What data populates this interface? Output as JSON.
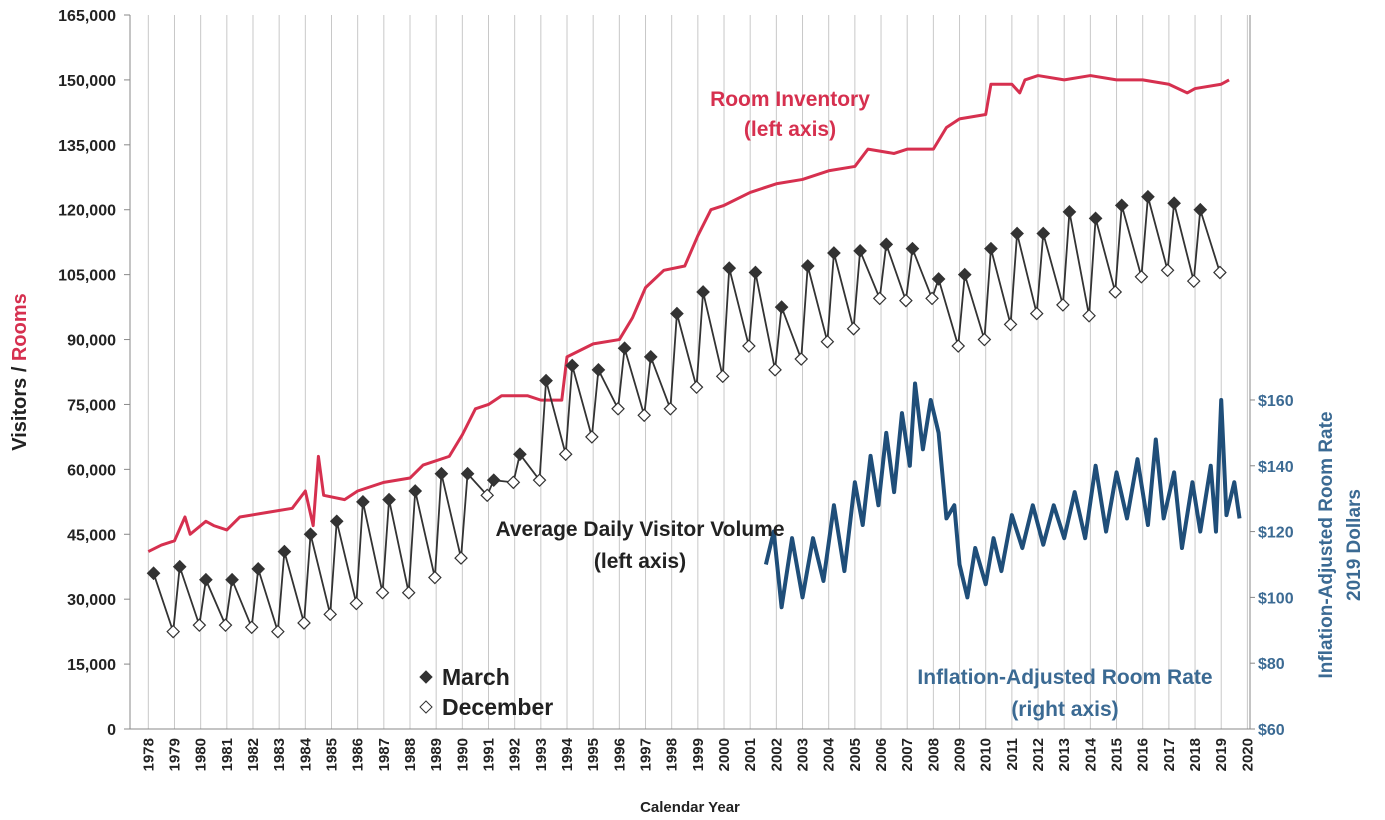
{
  "chart_data": {
    "type": "line",
    "ylabel": {
      "part1": "Visitors /",
      "part2": "Rooms"
    },
    "y2label": {
      "line1": "Inflation-Adjusted Room Rate",
      "line2": "2019 Dollars"
    },
    "xlabel": "Calendar Year",
    "xlim": [
      1977.3,
      2020.1
    ],
    "xticks": [
      1978,
      1979,
      1980,
      1981,
      1982,
      1983,
      1984,
      1985,
      1986,
      1987,
      1988,
      1989,
      1990,
      1991,
      1992,
      1993,
      1994,
      1995,
      1996,
      1997,
      1998,
      1999,
      2000,
      2001,
      2002,
      2003,
      2004,
      2005,
      2006,
      2007,
      2008,
      2009,
      2010,
      2011,
      2012,
      2013,
      2014,
      2015,
      2016,
      2017,
      2018,
      2019,
      2020
    ],
    "ylim": [
      0,
      165000
    ],
    "yticks": [
      0,
      {
        "value": 15000,
        "label": "15,000"
      },
      {
        "value": 30000,
        "label": "30,000"
      },
      {
        "value": 45000,
        "label": "45,000"
      },
      {
        "value": 60000,
        "label": "60,000"
      },
      {
        "value": 75000,
        "label": "75,000"
      },
      {
        "value": 90000,
        "label": "90,000"
      },
      {
        "value": 105000,
        "label": "105,000"
      },
      {
        "value": 120000,
        "label": "120,000"
      },
      {
        "value": 135000,
        "label": "135,000"
      },
      {
        "value": 150000,
        "label": "150,000"
      },
      {
        "value": 165000,
        "label": "165,000"
      }
    ],
    "y2lim": [
      60,
      277
    ],
    "y2ticks": [
      {
        "value": 60,
        "label": "$60"
      },
      {
        "value": 80,
        "label": "$80"
      },
      {
        "value": 100,
        "label": "$100"
      },
      {
        "value": 120,
        "label": "$120"
      },
      {
        "value": 140,
        "label": "$140"
      },
      {
        "value": 160,
        "label": "$160"
      }
    ],
    "grid": "x",
    "annotations": [
      {
        "text": "Room Inventory",
        "color": "#d6304f"
      },
      {
        "text": "(left axis)",
        "color": "#d6304f"
      },
      {
        "text": "Average Daily Visitor Volume",
        "color": "#222222"
      },
      {
        "text": "(left axis)",
        "color": "#222222"
      },
      {
        "text": "Inflation-Adjusted Room Rate",
        "color": "#3b6a93"
      },
      {
        "text": "(right axis)",
        "color": "#3b6a93"
      }
    ],
    "rooms": {
      "color": "#d6304f",
      "x": [
        1978,
        1978.5,
        1979,
        1979.4,
        1979.6,
        1980.2,
        1980.5,
        1981,
        1981.5,
        1982.5,
        1983.5,
        1984,
        1984.3,
        1984.5,
        1984.7,
        1985.5,
        1986,
        1987,
        1988,
        1988.5,
        1989.5,
        1990,
        1990.5,
        1991,
        1991.5,
        1992.5,
        1993,
        1993.8,
        1994,
        1995,
        1996,
        1996.5,
        1997,
        1997.7,
        1998.5,
        1999,
        1999.5,
        2000,
        2001,
        2002,
        2003,
        2004,
        2005,
        2005.5,
        2006.5,
        2007,
        2008,
        2008.5,
        2009,
        2010,
        2010.2,
        2011,
        2011.3,
        2011.5,
        2012,
        2013,
        2014,
        2015,
        2016,
        2017,
        2017.7,
        2018,
        2019,
        2019.3
      ],
      "values": [
        41000,
        42500,
        43500,
        49000,
        45000,
        48000,
        47000,
        46000,
        49000,
        50000,
        51000,
        55000,
        47000,
        63000,
        54000,
        53000,
        55000,
        57000,
        58000,
        61000,
        63000,
        68000,
        74000,
        75000,
        77000,
        77000,
        76000,
        76000,
        86000,
        89000,
        90000,
        95000,
        102000,
        106000,
        107000,
        114000,
        120000,
        121000,
        124000,
        126000,
        127000,
        129000,
        130000,
        134000,
        133000,
        134000,
        134000,
        139000,
        141000,
        142000,
        149000,
        149000,
        147000,
        150000,
        151000,
        150000,
        151000,
        150000,
        150000,
        149000,
        147000,
        148000,
        149000,
        150000
      ]
    },
    "series": [
      {
        "name": "March",
        "color": "#333333",
        "x": [
          1978.2,
          1979.2,
          1980.2,
          1981.2,
          1982.2,
          1983.2,
          1984.2,
          1985.2,
          1986.2,
          1987.2,
          1988.2,
          1989.2,
          1990.2,
          1991.2,
          1992.2,
          1993.2,
          1994.2,
          1995.2,
          1996.2,
          1997.2,
          1998.2,
          1999.2,
          2000.2,
          2001.2,
          2002.2,
          2003.2,
          2004.2,
          2005.2,
          2006.2,
          2007.2,
          2008.2,
          2009.2,
          2010.2,
          2011.2,
          2012.2,
          2013.2,
          2014.2,
          2015.2,
          2016.2,
          2017.2,
          2018.2
        ],
        "values": [
          36000,
          37500,
          34500,
          34500,
          37000,
          41000,
          45000,
          48000,
          52500,
          53000,
          55000,
          59000,
          59000,
          57500,
          63500,
          80500,
          84000,
          83000,
          88000,
          86000,
          96000,
          101000,
          106500,
          105500,
          97500,
          107000,
          110000,
          110500,
          112000,
          111000,
          104000,
          105000,
          111000,
          114500,
          114500,
          119500,
          118000,
          121000,
          123000,
          121500,
          120000
        ]
      },
      {
        "name": "December",
        "color": "#333333",
        "x": [
          1978.95,
          1979.95,
          1980.95,
          1981.95,
          1982.95,
          1983.95,
          1984.95,
          1985.95,
          1986.95,
          1987.95,
          1988.95,
          1989.95,
          1990.95,
          1991.95,
          1992.95,
          1993.95,
          1994.95,
          1995.95,
          1996.95,
          1997.95,
          1998.95,
          1999.95,
          2000.95,
          2001.95,
          2002.95,
          2003.95,
          2004.95,
          2005.95,
          2006.95,
          2007.95,
          2008.95,
          2009.95,
          2010.95,
          2011.95,
          2012.95,
          2013.95,
          2014.95,
          2015.95,
          2016.95,
          2017.95,
          2018.95
        ],
        "values": [
          22500,
          24000,
          24000,
          23500,
          22500,
          24500,
          26500,
          29000,
          31500,
          31500,
          35000,
          39500,
          54000,
          57000,
          57500,
          63500,
          67500,
          74000,
          72500,
          74000,
          79000,
          81500,
          88500,
          83000,
          85500,
          89500,
          92500,
          99500,
          99000,
          99500,
          88500,
          90000,
          93500,
          96000,
          98000,
          95500,
          101000,
          104500,
          106000,
          103500,
          105500
        ]
      }
    ],
    "rate": {
      "color": "#1f4e79",
      "axis": "y2",
      "x": [
        2001.6,
        2001.9,
        2002.2,
        2002.6,
        2003,
        2003.4,
        2003.8,
        2004.2,
        2004.6,
        2005,
        2005.3,
        2005.6,
        2005.9,
        2006.2,
        2006.5,
        2006.8,
        2007.1,
        2007.3,
        2007.6,
        2007.9,
        2008.2,
        2008.5,
        2008.8,
        2009,
        2009.3,
        2009.6,
        2010,
        2010.3,
        2010.6,
        2011,
        2011.4,
        2011.8,
        2012.2,
        2012.6,
        2013,
        2013.4,
        2013.8,
        2014.2,
        2014.6,
        2015,
        2015.4,
        2015.8,
        2016.2,
        2016.5,
        2016.8,
        2017.2,
        2017.5,
        2017.9,
        2018.2,
        2018.6,
        2018.8,
        2019,
        2019.2,
        2019.5,
        2019.7
      ],
      "values": [
        110,
        120,
        97,
        118,
        100,
        118,
        105,
        128,
        108,
        135,
        122,
        143,
        128,
        150,
        132,
        156,
        140,
        165,
        145,
        160,
        150,
        124,
        128,
        110,
        100,
        115,
        104,
        118,
        108,
        125,
        115,
        128,
        116,
        128,
        118,
        132,
        118,
        140,
        120,
        138,
        124,
        142,
        122,
        148,
        124,
        138,
        115,
        135,
        120,
        140,
        120,
        160,
        125,
        135,
        124
      ]
    }
  }
}
